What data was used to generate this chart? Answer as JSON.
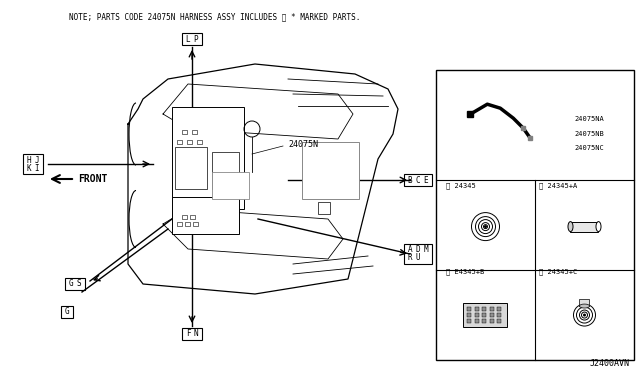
{
  "bg_color": "#ffffff",
  "line_color": "#000000",
  "gray_color": "#888888",
  "light_gray": "#bbbbbb",
  "note_text": "NOTE; PARTS CODE 24075N HARNESS ASSY INCLUDES ※ * MARKED PARTS.",
  "label_24075N": "24075N",
  "label_front": "FRONT",
  "label_j2400avn": "J2400AVN",
  "parts_labels": {
    "24075NA": "24075NA",
    "24075NB": "24075NB",
    "24075NC": "24075NC",
    "24345": "※ 24345",
    "24345A": "※ 24345+A",
    "24345B": "※ E4345+B",
    "24345C": "※ 24345+C"
  }
}
